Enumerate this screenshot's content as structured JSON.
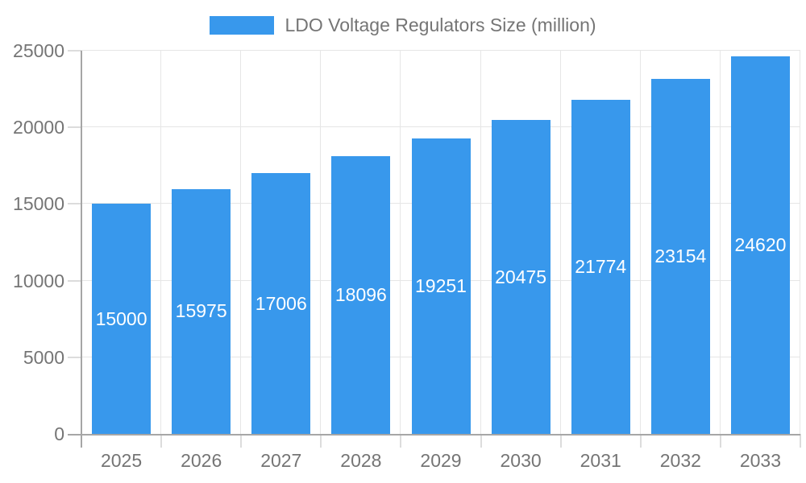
{
  "legend": {
    "label": "LDO Voltage Regulators Size (million)"
  },
  "colors": {
    "bar": "#3898ec",
    "axis": "#a6a6a6",
    "grid": "#e6e6e6",
    "tick": "#dcdcdc",
    "text": "#757575",
    "value_label": "#ffffff",
    "background": "#ffffff"
  },
  "chart_data": {
    "type": "bar",
    "title": "LDO Voltage Regulators Size (million)",
    "series_name": "LDO Voltage Regulators Size (million)",
    "categories": [
      "2025",
      "2026",
      "2027",
      "2028",
      "2029",
      "2030",
      "2031",
      "2032",
      "2033"
    ],
    "values": [
      15000,
      15975,
      17006,
      18096,
      19251,
      20475,
      21774,
      23154,
      24620
    ],
    "xlabel": "",
    "ylabel": "",
    "ylim": [
      0,
      25000
    ],
    "ytick_step": 5000,
    "ytick_labels": [
      "0",
      "5000",
      "10000",
      "15000",
      "20000",
      "25000"
    ],
    "grid": true,
    "legend_position": "top",
    "value_label_position": "inside-center"
  }
}
